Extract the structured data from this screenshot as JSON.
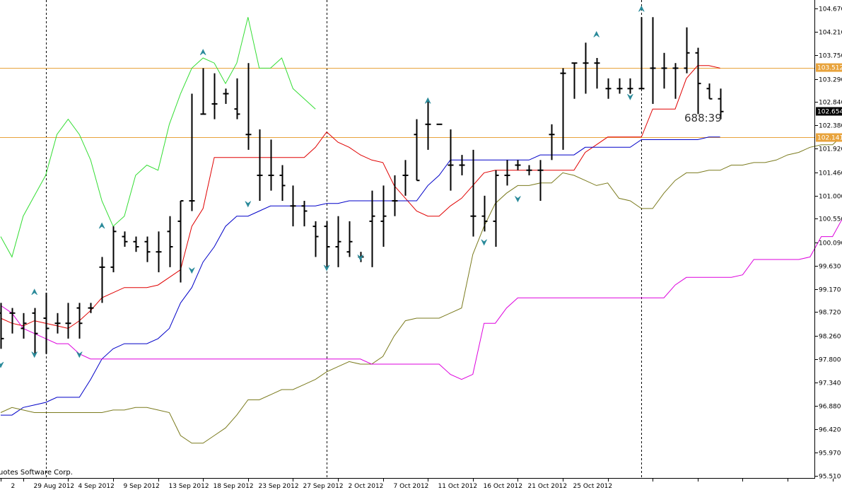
{
  "chart_data": {
    "type": "candlestick-ohlc-bars",
    "indicator": "Ichimoku",
    "y_range": [
      95.51,
      104.67
    ],
    "y_ticks": [
      "104.670",
      "104.210",
      "103.750",
      "103.290",
      "102.840",
      "102.380",
      "101.920",
      "101.460",
      "101.000",
      "100.550",
      "100.090",
      "99.630",
      "99.170",
      "98.720",
      "98.260",
      "97.800",
      "97.340",
      "96.880",
      "96.420",
      "95.970",
      "95.510"
    ],
    "x_labels": [
      {
        "label": "2",
        "i": 0
      },
      {
        "label": "29 Aug 2012",
        "i": 2
      },
      {
        "label": "4 Sep 2012",
        "i": 6
      },
      {
        "label": "9 Sep 2012",
        "i": 10
      },
      {
        "label": "13 Sep 2012",
        "i": 14
      },
      {
        "label": "18 Sep 2012",
        "i": 18
      },
      {
        "label": "23 Sep 2012",
        "i": 22
      },
      {
        "label": "27 Sep 2012",
        "i": 26
      },
      {
        "label": "2 Oct 2012",
        "i": 30
      },
      {
        "label": "7 Oct 2012",
        "i": 34
      },
      {
        "label": "11 Oct 2012",
        "i": 38
      },
      {
        "label": "16 Oct 2012",
        "i": 42
      },
      {
        "label": "21 Oct 2012",
        "i": 46
      },
      {
        "label": "25 Oct 2012",
        "i": 50
      },
      {
        "label": "",
        "i": 54
      },
      {
        "label": "",
        "i": 58
      },
      {
        "label": "",
        "i": 62
      },
      {
        "label": "",
        "i": 66
      },
      {
        "label": "",
        "i": 70
      },
      {
        "label": "",
        "i": 74
      }
    ],
    "period_separators": [
      4,
      29,
      57
    ],
    "horizontal_levels": [
      {
        "value": 103.512,
        "label": "103.512",
        "color": "#e8a33c"
      },
      {
        "value": 102.141,
        "label": "102.141",
        "color": "#e8a33c"
      }
    ],
    "current_price": {
      "value": 102.654,
      "label": "102.654"
    },
    "bar_timer": "688:39",
    "copyright": "uotes Software Corp.",
    "bars": [
      {
        "o": 98.7,
        "h": 98.9,
        "l": 98.0,
        "c": 98.2
      },
      {
        "o": 98.7,
        "h": 98.8,
        "l": 98.3,
        "c": 98.7
      },
      {
        "o": 98.4,
        "h": 98.7,
        "l": 98.2,
        "c": 98.5
      },
      {
        "o": 98.7,
        "h": 98.8,
        "l": 97.9,
        "c": 98.3
      },
      {
        "o": 98.6,
        "h": 99.1,
        "l": 97.9,
        "c": 98.4
      },
      {
        "o": 98.5,
        "h": 98.7,
        "l": 98.3,
        "c": 98.5
      },
      {
        "o": 98.5,
        "h": 98.9,
        "l": 98.2,
        "c": 98.5
      },
      {
        "o": 98.8,
        "h": 98.9,
        "l": 98.2,
        "c": 98.5
      },
      {
        "o": 98.8,
        "h": 98.9,
        "l": 98.7,
        "c": 98.8
      },
      {
        "o": 99.6,
        "h": 99.8,
        "l": 98.9,
        "c": 99.6
      },
      {
        "o": 99.6,
        "h": 100.4,
        "l": 99.5,
        "c": 100.3
      },
      {
        "o": 100.2,
        "h": 100.3,
        "l": 100.0,
        "c": 100.1
      },
      {
        "o": 100.1,
        "h": 100.2,
        "l": 99.9,
        "c": 100.0
      },
      {
        "o": 100.1,
        "h": 100.2,
        "l": 99.7,
        "c": 99.9
      },
      {
        "o": 99.9,
        "h": 100.3,
        "l": 99.5,
        "c": 99.9
      },
      {
        "o": 100.3,
        "h": 100.6,
        "l": 99.6,
        "c": 100.0
      },
      {
        "o": 100.5,
        "h": 100.9,
        "l": 99.3,
        "c": 100.9
      },
      {
        "o": 100.9,
        "h": 103.0,
        "l": 100.7,
        "c": 100.9
      },
      {
        "o": 102.6,
        "h": 103.5,
        "l": 102.6,
        "c": 102.6
      },
      {
        "o": 102.8,
        "h": 103.4,
        "l": 102.5,
        "c": 102.8
      },
      {
        "o": 103.0,
        "h": 103.1,
        "l": 102.8,
        "c": 103.0
      },
      {
        "o": 102.7,
        "h": 103.3,
        "l": 102.5,
        "c": 102.6
      },
      {
        "o": 102.2,
        "h": 103.6,
        "l": 101.9,
        "c": 102.2
      },
      {
        "o": 101.4,
        "h": 102.3,
        "l": 100.9,
        "c": 101.4
      },
      {
        "o": 101.4,
        "h": 102.1,
        "l": 101.1,
        "c": 101.4
      },
      {
        "o": 101.4,
        "h": 101.6,
        "l": 100.9,
        "c": 101.2
      },
      {
        "o": 100.8,
        "h": 101.2,
        "l": 100.4,
        "c": 100.8
      },
      {
        "o": 100.8,
        "h": 100.9,
        "l": 100.4,
        "c": 100.7
      },
      {
        "o": 100.4,
        "h": 100.5,
        "l": 99.8,
        "c": 100.2
      },
      {
        "o": 100.4,
        "h": 100.5,
        "l": 99.6,
        "c": 100.0
      },
      {
        "o": 100.0,
        "h": 100.6,
        "l": 99.6,
        "c": 100.1
      },
      {
        "o": 99.9,
        "h": 100.5,
        "l": 99.8,
        "c": 100.1
      },
      {
        "o": 99.8,
        "h": 99.9,
        "l": 99.7,
        "c": 99.8
      },
      {
        "o": 100.5,
        "h": 101.1,
        "l": 99.6,
        "c": 100.6
      },
      {
        "o": 100.5,
        "h": 101.2,
        "l": 100.0,
        "c": 100.6
      },
      {
        "o": 100.9,
        "h": 101.4,
        "l": 100.6,
        "c": 100.9
      },
      {
        "o": 101.4,
        "h": 101.7,
        "l": 101.0,
        "c": 101.4
      },
      {
        "o": 102.2,
        "h": 102.5,
        "l": 101.3,
        "c": 101.3
      },
      {
        "o": 102.4,
        "h": 102.9,
        "l": 101.9,
        "c": 102.4
      },
      {
        "o": 102.4,
        "h": 102.4,
        "l": 102.4,
        "c": 102.4
      },
      {
        "o": 101.6,
        "h": 102.3,
        "l": 101.1,
        "c": 101.6
      },
      {
        "o": 101.6,
        "h": 101.8,
        "l": 101.4,
        "c": 101.6
      },
      {
        "o": 100.6,
        "h": 101.9,
        "l": 100.2,
        "c": 100.6
      },
      {
        "o": 100.6,
        "h": 101.0,
        "l": 100.3,
        "c": 100.5
      },
      {
        "o": 100.5,
        "h": 101.5,
        "l": 100.0,
        "c": 101.4
      },
      {
        "o": 101.4,
        "h": 101.7,
        "l": 101.2,
        "c": 101.4
      },
      {
        "o": 101.6,
        "h": 101.7,
        "l": 101.5,
        "c": 101.6
      },
      {
        "o": 101.5,
        "h": 101.6,
        "l": 101.4,
        "c": 101.5
      },
      {
        "o": 101.5,
        "h": 101.7,
        "l": 100.9,
        "c": 101.5
      },
      {
        "o": 102.2,
        "h": 102.4,
        "l": 101.7,
        "c": 102.2
      },
      {
        "o": 103.4,
        "h": 103.5,
        "l": 101.9,
        "c": 103.4
      },
      {
        "o": 103.6,
        "h": 103.6,
        "l": 102.9,
        "c": 103.6
      },
      {
        "o": 103.6,
        "h": 104.0,
        "l": 103.0,
        "c": 103.6
      },
      {
        "o": 103.6,
        "h": 103.7,
        "l": 103.1,
        "c": 103.6
      },
      {
        "o": 103.1,
        "h": 103.3,
        "l": 102.9,
        "c": 103.1
      },
      {
        "o": 103.1,
        "h": 103.3,
        "l": 103.0,
        "c": 103.1
      },
      {
        "o": 103.1,
        "h": 103.3,
        "l": 103.0,
        "c": 103.1
      },
      {
        "o": 103.1,
        "h": 104.5,
        "l": 103.1,
        "c": 103.1
      },
      {
        "o": 103.5,
        "h": 104.5,
        "l": 102.8,
        "c": 103.5
      },
      {
        "o": 103.5,
        "h": 103.8,
        "l": 103.1,
        "c": 103.5
      },
      {
        "o": 103.5,
        "h": 103.6,
        "l": 102.9,
        "c": 103.5
      },
      {
        "o": 103.5,
        "h": 104.3,
        "l": 103.4,
        "c": 103.8
      },
      {
        "o": 103.8,
        "h": 103.9,
        "l": 102.6,
        "c": 103.2
      },
      {
        "o": 103.1,
        "h": 103.2,
        "l": 102.9,
        "c": 102.9
      },
      {
        "o": 102.9,
        "h": 103.1,
        "l": 102.5,
        "c": 102.65
      }
    ],
    "series": [
      {
        "name": "tenkan",
        "color": "#e00000",
        "start": 0,
        "values": [
          98.6,
          98.5,
          98.45,
          98.55,
          98.5,
          98.45,
          98.4,
          98.55,
          98.75,
          99.0,
          99.1,
          99.2,
          99.2,
          99.2,
          99.25,
          99.4,
          99.55,
          100.4,
          100.75,
          101.75,
          101.75,
          101.75,
          101.75,
          101.75,
          101.75,
          101.75,
          101.75,
          101.75,
          101.95,
          102.25,
          102.05,
          101.95,
          101.8,
          101.7,
          101.65,
          101.2,
          100.95,
          100.7,
          100.6,
          100.6,
          100.8,
          100.95,
          101.2,
          101.45,
          101.5,
          101.5,
          101.5,
          101.5,
          101.5,
          101.5,
          101.5,
          101.5,
          101.85,
          102.0,
          102.15,
          102.15,
          102.15,
          102.15,
          102.7,
          102.7,
          102.7,
          103.3,
          103.55,
          103.55,
          103.5
        ]
      },
      {
        "name": "kijun",
        "color": "#0000c8",
        "start": 0,
        "values": [
          96.7,
          96.7,
          96.85,
          96.9,
          96.95,
          97.05,
          97.05,
          97.05,
          97.4,
          97.8,
          98.0,
          98.1,
          98.1,
          98.1,
          98.2,
          98.4,
          98.9,
          99.2,
          99.7,
          100.0,
          100.4,
          100.6,
          100.6,
          100.7,
          100.8,
          100.8,
          100.8,
          100.8,
          100.8,
          100.85,
          100.85,
          100.9,
          100.9,
          100.9,
          100.9,
          100.9,
          100.9,
          100.9,
          101.2,
          101.4,
          101.7,
          101.7,
          101.7,
          101.7,
          101.7,
          101.7,
          101.7,
          101.7,
          101.8,
          101.8,
          101.8,
          101.8,
          101.95,
          101.95,
          101.95,
          101.95,
          101.95,
          102.1,
          102.1,
          102.1,
          102.1,
          102.1,
          102.1,
          102.15,
          102.15
        ]
      },
      {
        "name": "senkou_a",
        "color": "#7b7b1e",
        "start": 0,
        "values": [
          96.75,
          96.85,
          96.8,
          96.75,
          96.75,
          96.75,
          96.75,
          96.75,
          96.75,
          96.75,
          96.8,
          96.8,
          96.85,
          96.85,
          96.8,
          96.75,
          96.3,
          96.15,
          96.15,
          96.3,
          96.45,
          96.7,
          97.0,
          97.0,
          97.1,
          97.2,
          97.2,
          97.3,
          97.4,
          97.55,
          97.65,
          97.75,
          97.7,
          97.7,
          97.85,
          98.25,
          98.55,
          98.6,
          98.6,
          98.6,
          98.7,
          98.8,
          99.85,
          100.4,
          100.85,
          101.05,
          101.2,
          101.2,
          101.25,
          101.25,
          101.45,
          101.4,
          101.3,
          101.2,
          101.25,
          100.95,
          100.9,
          100.75,
          100.75,
          101.05,
          101.3,
          101.45,
          101.45,
          101.5,
          101.5,
          101.6,
          101.6,
          101.65,
          101.65,
          101.7,
          101.8,
          101.85,
          101.95,
          102.0,
          102.0,
          102.2,
          102.4
        ]
      },
      {
        "name": "senkou_b",
        "color": "#dd00dd",
        "start": 0,
        "values": [
          98.85,
          98.7,
          98.4,
          98.3,
          98.2,
          98.1,
          98.1,
          97.9,
          97.8,
          97.8,
          97.8,
          97.8,
          97.8,
          97.8,
          97.8,
          97.8,
          97.8,
          97.8,
          97.8,
          97.8,
          97.8,
          97.8,
          97.8,
          97.8,
          97.8,
          97.8,
          97.8,
          97.8,
          97.8,
          97.8,
          97.8,
          97.8,
          97.8,
          97.7,
          97.7,
          97.7,
          97.7,
          97.7,
          97.7,
          97.7,
          97.5,
          97.4,
          97.5,
          98.5,
          98.5,
          98.8,
          99.0,
          99.0,
          99.0,
          99.0,
          99.0,
          99.0,
          99.0,
          99.0,
          99.0,
          99.0,
          99.0,
          99.0,
          99.0,
          99.0,
          99.25,
          99.4,
          99.4,
          99.4,
          99.4,
          99.4,
          99.45,
          99.75,
          99.75,
          99.75,
          99.75,
          99.75,
          99.8,
          100.2,
          100.2,
          100.6,
          100.95,
          101.2
        ]
      },
      {
        "name": "chikou",
        "color": "#33dd33",
        "start": 0,
        "values": [
          100.2,
          99.8,
          100.6,
          101.0,
          101.4,
          102.2,
          102.5,
          102.2,
          101.7,
          100.9,
          100.4,
          100.6,
          101.4,
          101.6,
          101.5,
          102.4,
          103.0,
          103.5,
          103.7,
          103.6,
          103.2,
          103.6,
          104.5,
          103.5,
          103.5,
          103.7,
          103.1,
          102.9,
          102.7
        ]
      }
    ],
    "arrows": [
      {
        "i": 3,
        "dir": "up",
        "v": 99.1
      },
      {
        "i": 3,
        "dir": "down",
        "v": 97.9
      },
      {
        "i": 7,
        "dir": "down",
        "v": 97.9
      },
      {
        "i": 9,
        "dir": "up",
        "v": 100.4
      },
      {
        "i": 18,
        "dir": "up",
        "v": 103.8
      },
      {
        "i": 17,
        "dir": "down",
        "v": 99.55
      },
      {
        "i": 22,
        "dir": "down",
        "v": 100.85
      },
      {
        "i": 29,
        "dir": "down",
        "v": 99.6
      },
      {
        "i": 32,
        "dir": "down",
        "v": 99.8
      },
      {
        "i": 38,
        "dir": "up",
        "v": 102.85
      },
      {
        "i": 43,
        "dir": "down",
        "v": 100.1
      },
      {
        "i": 46,
        "dir": "down",
        "v": 100.95
      },
      {
        "i": 53,
        "dir": "up",
        "v": 104.15
      },
      {
        "i": 56,
        "dir": "down",
        "v": 102.95
      },
      {
        "i": 57,
        "dir": "up",
        "v": 104.65
      },
      {
        "i": 0,
        "dir": "down",
        "v": 97.7
      }
    ]
  }
}
